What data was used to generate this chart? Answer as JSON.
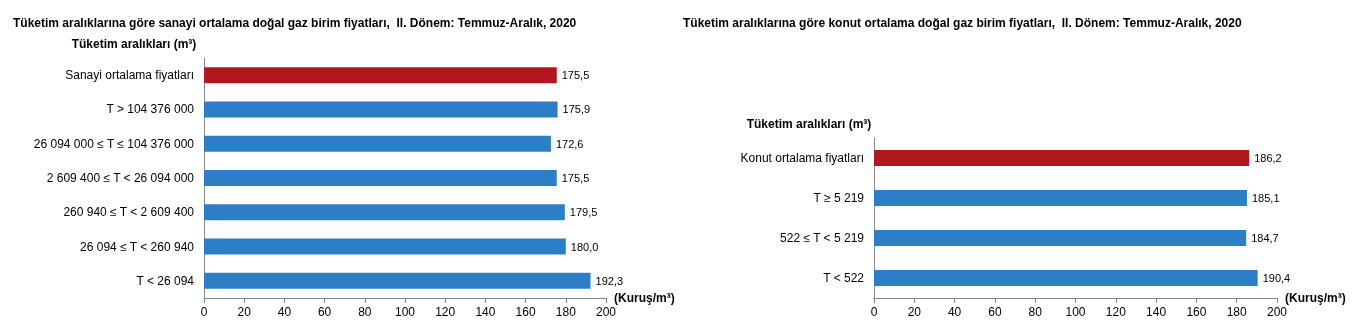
{
  "chart_data": [
    {
      "type": "bar",
      "orientation": "horizontal",
      "title": "Tüketim aralıklarına göre sanayi ortalama doğal gaz birim fiyatları,  II. Dönem: Temmuz-Aralık, 2020",
      "ylabel": "Tüketim aralıkları (m³)",
      "xlabel": "(Kuruş/m³)",
      "categories": [
        "Sanayi ortalama fiyatları",
        "T > 104 376 000",
        "26 094 000 ≤ T ≤ 104 376 000",
        "2 609 400 ≤ T < 26 094 000",
        "260 940 ≤ T < 2 609 400",
        "26 094 ≤ T < 260 940",
        "T < 26 094"
      ],
      "values": [
        175.5,
        175.9,
        172.6,
        175.5,
        179.5,
        180.0,
        192.3
      ],
      "value_labels": [
        "175,5",
        "175,9",
        "172,6",
        "175,5",
        "179,5",
        "180,0",
        "192,3"
      ],
      "colors": [
        "#b0181d",
        "#2c7fc6",
        "#2c7fc6",
        "#2c7fc6",
        "#2c7fc6",
        "#2c7fc6",
        "#2c7fc6"
      ],
      "xlim": [
        0,
        200
      ],
      "xticks": [
        0,
        20,
        40,
        60,
        80,
        100,
        120,
        140,
        160,
        180,
        200
      ],
      "grid": false
    },
    {
      "type": "bar",
      "orientation": "horizontal",
      "title": "Tüketim aralıklarına göre konut ortalama doğal gaz birim fiyatları,  II. Dönem: Temmuz-Aralık, 2020",
      "ylabel": "Tüketim aralıkları (m³)",
      "xlabel": "(Kuruş/m³)",
      "categories": [
        "Konut ortalama fiyatları",
        "T ≥ 5 219",
        "522 ≤ T < 5 219",
        "T < 522"
      ],
      "values": [
        186.2,
        185.1,
        184.7,
        190.4
      ],
      "value_labels": [
        "186,2",
        "185,1",
        "184,7",
        "190,4"
      ],
      "colors": [
        "#b0181d",
        "#2c7fc6",
        "#2c7fc6",
        "#2c7fc6"
      ],
      "xlim": [
        0,
        200
      ],
      "xticks": [
        0,
        20,
        40,
        60,
        80,
        100,
        120,
        140,
        160,
        180,
        200
      ],
      "grid": false
    }
  ]
}
